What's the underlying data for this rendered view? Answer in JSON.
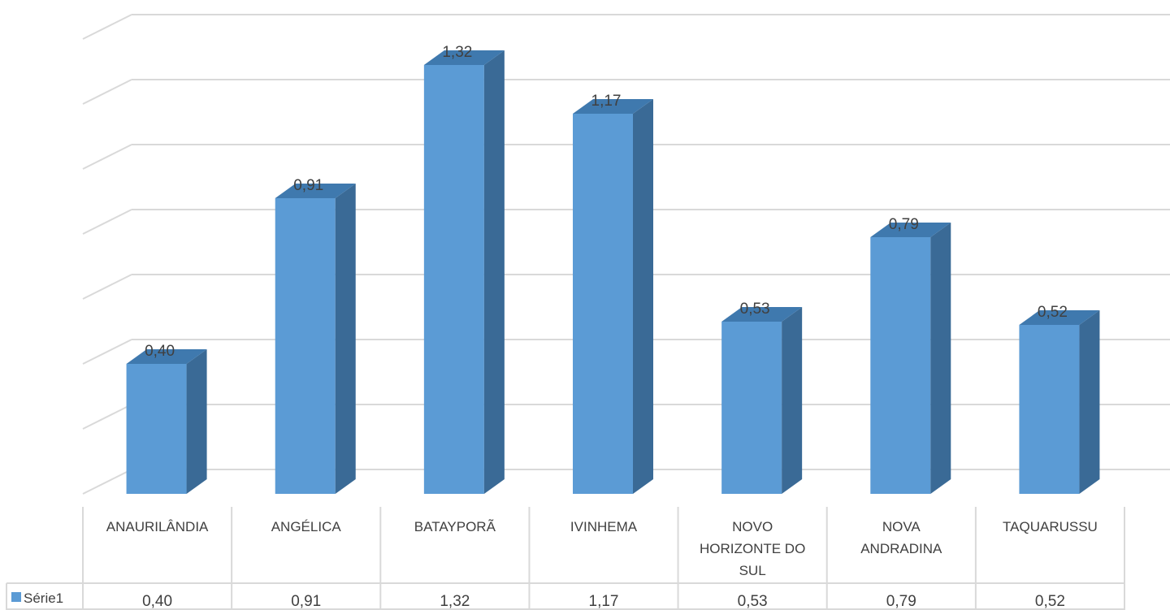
{
  "chart_data": {
    "type": "bar",
    "three_d": true,
    "categories": [
      [
        "ANAURILÂNDIA"
      ],
      [
        "ANGÉLICA"
      ],
      [
        "BATAYPORÃ"
      ],
      [
        "IVINHEMA"
      ],
      [
        "NOVO",
        "HORIZONTE DO",
        "SUL"
      ],
      [
        "NOVA",
        "ANDRADINA"
      ],
      [
        "TAQUARUSSU"
      ]
    ],
    "series": [
      {
        "name": "Série1",
        "values": [
          0.4,
          0.91,
          1.32,
          1.17,
          0.53,
          0.79,
          0.52
        ],
        "labels": [
          "0,40",
          "0,91",
          "1,32",
          "1,17",
          "0,53",
          "0,79",
          "0,52"
        ],
        "color": "#5B9BD5",
        "side_color": "#3A6A96",
        "top_color": "#3F79AE"
      }
    ],
    "ylim": [
      0,
      1.4
    ],
    "grid": true,
    "data_table": true,
    "legend_placement": "data-table"
  }
}
